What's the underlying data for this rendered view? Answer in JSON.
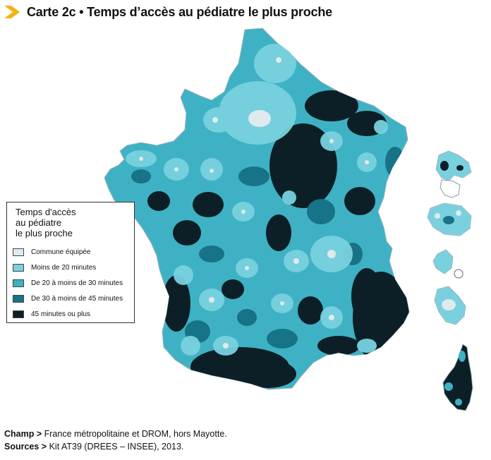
{
  "title": "Carte 2c • Temps d’accès au pédiatre le plus proche",
  "colors": {
    "accent": "#f2b21a",
    "equipee": "#dfeaee",
    "moins_20": "#79d1df",
    "de_20_30": "#3fb1c4",
    "de_30_45": "#177387",
    "plus_45": "#0c1f27"
  },
  "legend": {
    "title": "Temps d'accès\nau pédiatre\nle plus proche",
    "items": [
      {
        "label": "Commune équipée",
        "color_key": "equipee"
      },
      {
        "label": "Moins de 20 minutes",
        "color_key": "moins_20"
      },
      {
        "label": "De 20 à moins de 30 minutes",
        "color_key": "de_20_30"
      },
      {
        "label": "De 30 à moins de 45 minutes",
        "color_key": "de_30_45"
      },
      {
        "label": "45 minutes ou plus",
        "color_key": "plus_45"
      }
    ]
  },
  "footer": {
    "champ_label": "Champ >",
    "champ_text": " France métropolitaine et DROM, hors Mayotte.",
    "sources_label": "Sources >",
    "sources_text": " Kit AT39 (DREES – INSEE), 2013."
  }
}
